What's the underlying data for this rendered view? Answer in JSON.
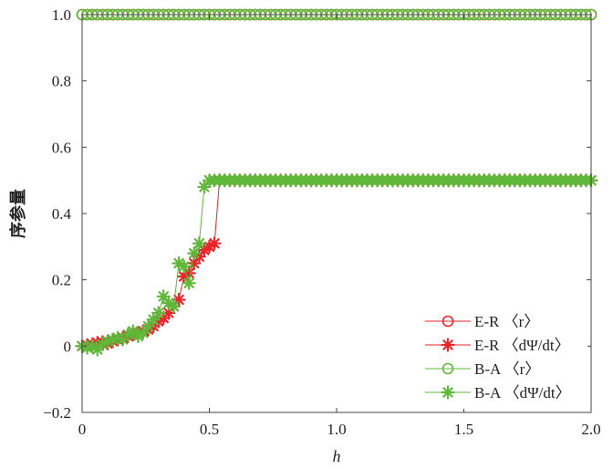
{
  "chart_data": {
    "type": "line",
    "xlabel": "h",
    "ylabel": "序参量",
    "xlim": [
      0,
      2.0
    ],
    "ylim": [
      -0.2,
      1.0
    ],
    "x_ticks": [
      "0",
      "0.5",
      "1.0",
      "1.5",
      "2.0"
    ],
    "x_tick_values": [
      0,
      0.5,
      1.0,
      1.5,
      2.0
    ],
    "y_ticks": [
      "−0.2",
      "0",
      "0.2",
      "0.4",
      "0.6",
      "0.8",
      "1.0"
    ],
    "y_tick_values": [
      -0.2,
      0,
      0.2,
      0.4,
      0.6,
      0.8,
      1.0
    ],
    "grid": false,
    "legend_position": "bottom-right",
    "x": [
      0,
      0.02,
      0.04,
      0.06,
      0.08,
      0.1,
      0.12,
      0.14,
      0.16,
      0.18,
      0.2,
      0.22,
      0.24,
      0.26,
      0.28,
      0.3,
      0.32,
      0.34,
      0.36,
      0.38,
      0.4,
      0.42,
      0.44,
      0.46,
      0.48,
      0.5,
      0.52,
      0.54,
      0.56,
      0.58,
      0.6,
      0.62,
      0.64,
      0.66,
      0.68,
      0.7,
      0.72,
      0.74,
      0.76,
      0.78,
      0.8,
      0.82,
      0.84,
      0.86,
      0.88,
      0.9,
      0.92,
      0.94,
      0.96,
      0.98,
      1.0,
      1.02,
      1.04,
      1.06,
      1.08,
      1.1,
      1.12,
      1.14,
      1.16,
      1.18,
      1.2,
      1.22,
      1.24,
      1.26,
      1.28,
      1.3,
      1.32,
      1.34,
      1.36,
      1.38,
      1.4,
      1.42,
      1.44,
      1.46,
      1.48,
      1.5,
      1.52,
      1.54,
      1.56,
      1.58,
      1.6,
      1.62,
      1.64,
      1.66,
      1.68,
      1.7,
      1.72,
      1.74,
      1.76,
      1.78,
      1.8,
      1.82,
      1.84,
      1.86,
      1.88,
      1.9,
      1.92,
      1.94,
      1.96,
      1.98,
      2.0
    ],
    "series": [
      {
        "name": "E-R 〈r〉",
        "color": "#e8262b",
        "marker": "circle",
        "values_constant": 1.0
      },
      {
        "name": "E-R 〈dΨ/dt〉",
        "color": "#e8262b",
        "marker": "asterisk",
        "values_prefix": [
          0,
          0.003,
          0.005,
          0.01,
          0.012,
          0.008,
          0.015,
          0.02,
          0.025,
          0.03,
          0.035,
          0.04,
          0.045,
          0.05,
          0.06,
          0.075,
          0.085,
          0.1,
          0.12,
          0.14,
          0.21,
          0.22,
          0.25,
          0.27,
          0.29,
          0.3,
          0.31
        ],
        "values_tail": 0.5
      },
      {
        "name": "B-A 〈r〉",
        "color": "#5fb83a",
        "marker": "circle",
        "values_constant": 1.0
      },
      {
        "name": "B-A 〈dΨ/dt〉",
        "color": "#5fb83a",
        "marker": "asterisk",
        "values_prefix": [
          0,
          -0.005,
          0,
          -0.01,
          0.005,
          0.015,
          0.02,
          0.025,
          0.02,
          0.035,
          0.045,
          0.03,
          0.04,
          0.06,
          0.08,
          0.1,
          0.15,
          0.13,
          0.12,
          0.25,
          0.24,
          0.19,
          0.28,
          0.31,
          0.48
        ],
        "values_tail": 0.5
      }
    ]
  }
}
